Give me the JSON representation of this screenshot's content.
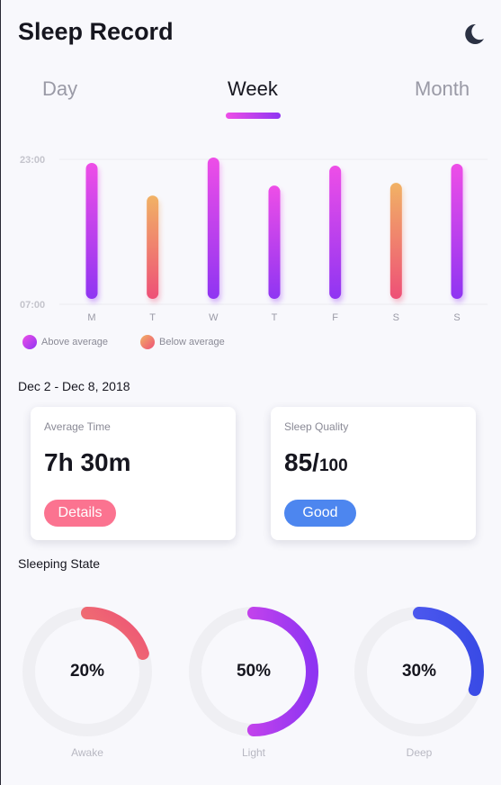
{
  "header": {
    "title": "Sleep Record",
    "theme_icon": "moon-icon"
  },
  "tabs": [
    {
      "label": "Day",
      "active": false
    },
    {
      "label": "Week",
      "active": true
    },
    {
      "label": "Month",
      "active": false
    }
  ],
  "chart_data": {
    "type": "bar",
    "title": "",
    "xlabel": "",
    "ylabel": "",
    "categories": [
      "M",
      "T",
      "W",
      "T",
      "F",
      "S",
      "S"
    ],
    "y_tick_labels": [
      "23:00",
      "07:00"
    ],
    "ylim_labels": [
      "07:00",
      "23:00"
    ],
    "ylim_hours": [
      7,
      23
    ],
    "values_hours": [
      22.6,
      19.0,
      23.2,
      20.1,
      22.3,
      20.4,
      22.5
    ],
    "value_category": [
      "above",
      "below",
      "above",
      "above",
      "above",
      "below",
      "above"
    ],
    "grid": "horizontal lines at tick labels",
    "legend": {
      "placement": "bottom-left",
      "items": [
        {
          "key": "above",
          "label": "Above average",
          "colors": [
            "#ee4ee7",
            "#8f35f2"
          ]
        },
        {
          "key": "below",
          "label": "Below average",
          "colors": [
            "#f1b265",
            "#ee5077"
          ]
        }
      ]
    }
  },
  "summary": {
    "date_range": "Dec 2 - Dec 8, 2018",
    "average_time": {
      "label": "Average Time",
      "value": "7h 30m",
      "button": "Details"
    },
    "sleep_quality": {
      "label": "Sleep Quality",
      "value": "85/",
      "unit": "100",
      "button": "Good"
    }
  },
  "sleeping_state": {
    "title": "Sleeping State",
    "items": [
      {
        "label": "Awake",
        "percent_text": "20%",
        "fraction": 0.2,
        "colors": [
          "#f1b265",
          "#ee5077"
        ]
      },
      {
        "label": "Light",
        "percent_text": "50%",
        "fraction": 0.5,
        "colors": [
          "#ee4ee7",
          "#8f35f2"
        ]
      },
      {
        "label": "Deep",
        "percent_text": "30%",
        "fraction": 0.3,
        "colors": [
          "#5a62f4",
          "#3a4be6"
        ]
      }
    ]
  },
  "colors": {
    "accent": "#ee4ee7",
    "details_pill": "#fb7390",
    "good_pill": "#4d86ef",
    "ring_track": "#efeff3"
  }
}
